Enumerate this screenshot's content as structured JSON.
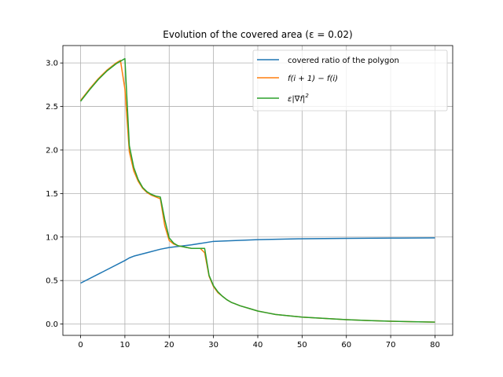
{
  "chart_data": {
    "type": "line",
    "title": "Evolution of the covered area (ε = 0.02)",
    "xlabel": "",
    "ylabel": "",
    "xlim": [
      -4,
      84
    ],
    "ylim": [
      -0.13,
      3.2
    ],
    "xticks": [
      0,
      10,
      20,
      30,
      40,
      50,
      60,
      70,
      80
    ],
    "yticks": [
      0.0,
      0.5,
      1.0,
      1.5,
      2.0,
      2.5,
      3.0
    ],
    "xtick_labels": [
      "0",
      "10",
      "20",
      "30",
      "40",
      "50",
      "60",
      "70",
      "80"
    ],
    "ytick_labels": [
      "0.0",
      "0.5",
      "1.0",
      "1.5",
      "2.0",
      "2.5",
      "3.0"
    ],
    "grid": true,
    "legend_position": "top-right",
    "legend_entries": [
      {
        "label": "covered ratio of the polygon"
      },
      {
        "label_parts": [
          "f(i + 1) − f(i)"
        ]
      },
      {
        "label_parts": [
          "ε|∇f|",
          "2"
        ]
      }
    ],
    "series": [
      {
        "name": "covered ratio of the polygon",
        "color": "#1f77b4",
        "x": [
          0,
          5,
          10,
          11,
          12,
          15,
          18,
          20,
          25,
          30,
          35,
          40,
          50,
          60,
          70,
          80
        ],
        "y": [
          0.47,
          0.6,
          0.73,
          0.76,
          0.78,
          0.82,
          0.86,
          0.88,
          0.91,
          0.95,
          0.96,
          0.97,
          0.98,
          0.985,
          0.988,
          0.99
        ]
      },
      {
        "name": "f(i + 1) − f(i)",
        "color": "#ff7f0e",
        "x": [
          0,
          2,
          4,
          6,
          8,
          9,
          10,
          11,
          12,
          13,
          14,
          15,
          16,
          17,
          18,
          19,
          20,
          21,
          22,
          23,
          24,
          25,
          26,
          27,
          28,
          29,
          30,
          31,
          32,
          33,
          34,
          35,
          36,
          38,
          40,
          42,
          44,
          46,
          48,
          50,
          55,
          60,
          65,
          70,
          75,
          80
        ],
        "y": [
          2.57,
          2.7,
          2.82,
          2.92,
          3.0,
          3.03,
          2.7,
          1.98,
          1.76,
          1.64,
          1.56,
          1.51,
          1.48,
          1.46,
          1.44,
          1.13,
          0.96,
          0.92,
          0.9,
          0.89,
          0.88,
          0.87,
          0.87,
          0.87,
          0.82,
          0.55,
          0.43,
          0.36,
          0.32,
          0.28,
          0.25,
          0.23,
          0.21,
          0.18,
          0.15,
          0.13,
          0.11,
          0.1,
          0.09,
          0.08,
          0.065,
          0.05,
          0.04,
          0.033,
          0.027,
          0.022
        ]
      },
      {
        "name": "ε|∇f|²",
        "color": "#2ca02c",
        "x": [
          0,
          2,
          4,
          6,
          8,
          9,
          10,
          11,
          12,
          13,
          14,
          15,
          16,
          17,
          18,
          19,
          20,
          21,
          22,
          23,
          24,
          25,
          26,
          27,
          28,
          29,
          30,
          31,
          32,
          33,
          34,
          35,
          36,
          38,
          40,
          42,
          44,
          46,
          48,
          50,
          55,
          60,
          65,
          70,
          75,
          80
        ],
        "y": [
          2.56,
          2.69,
          2.81,
          2.91,
          2.99,
          3.02,
          3.05,
          2.05,
          1.8,
          1.66,
          1.57,
          1.52,
          1.49,
          1.47,
          1.46,
          1.2,
          0.99,
          0.93,
          0.9,
          0.89,
          0.88,
          0.87,
          0.87,
          0.87,
          0.87,
          0.56,
          0.44,
          0.37,
          0.32,
          0.28,
          0.25,
          0.23,
          0.21,
          0.18,
          0.15,
          0.13,
          0.11,
          0.1,
          0.09,
          0.08,
          0.065,
          0.05,
          0.04,
          0.033,
          0.027,
          0.022
        ]
      }
    ]
  }
}
